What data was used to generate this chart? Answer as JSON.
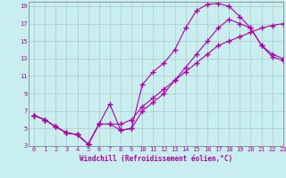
{
  "xlabel": "Windchill (Refroidissement éolien,°C)",
  "background_color": "#c8eef0",
  "line_color": "#aa00aa",
  "line1_x": [
    0,
    1,
    2,
    3,
    4,
    5,
    6,
    7,
    8,
    9,
    10,
    11,
    12,
    13,
    14,
    15,
    16,
    17,
    18,
    19,
    20,
    21,
    22,
    23
  ],
  "line1_y": [
    6.5,
    6.0,
    5.2,
    4.5,
    4.3,
    3.2,
    5.5,
    7.8,
    4.8,
    5.0,
    10.0,
    11.5,
    12.5,
    14.0,
    16.5,
    18.5,
    19.2,
    19.3,
    19.0,
    17.8,
    16.5,
    14.5,
    13.2,
    12.8
  ],
  "line2_x": [
    0,
    1,
    2,
    3,
    4,
    5,
    6,
    7,
    8,
    9,
    10,
    11,
    12,
    13,
    14,
    15,
    16,
    17,
    18,
    19,
    20,
    21,
    22,
    23
  ],
  "line2_y": [
    6.5,
    6.0,
    5.2,
    4.5,
    4.3,
    3.2,
    5.5,
    5.5,
    5.5,
    6.0,
    7.5,
    8.5,
    9.5,
    10.5,
    11.5,
    12.5,
    13.5,
    14.5,
    15.0,
    15.5,
    16.0,
    16.5,
    16.8,
    17.0
  ],
  "line3_x": [
    0,
    1,
    2,
    3,
    4,
    5,
    6,
    7,
    8,
    9,
    10,
    11,
    12,
    13,
    14,
    15,
    16,
    17,
    18,
    19,
    20,
    21,
    22,
    23
  ],
  "line3_y": [
    6.5,
    6.0,
    5.2,
    4.5,
    4.3,
    3.2,
    5.5,
    5.5,
    4.8,
    5.0,
    7.0,
    8.0,
    9.0,
    10.5,
    12.0,
    13.5,
    15.0,
    16.5,
    17.5,
    17.0,
    16.5,
    14.5,
    13.5,
    13.0
  ],
  "xlim": [
    -0.5,
    23
  ],
  "ylim": [
    3,
    19.5
  ],
  "xticks": [
    0,
    1,
    2,
    3,
    4,
    5,
    6,
    7,
    8,
    9,
    10,
    11,
    12,
    13,
    14,
    15,
    16,
    17,
    18,
    19,
    20,
    21,
    22,
    23
  ],
  "yticks": [
    3,
    5,
    7,
    9,
    11,
    13,
    15,
    17,
    19
  ],
  "grid_color": "#b0c8c8",
  "marker": "+",
  "markersize": 4,
  "linewidth": 0.8,
  "tick_color": "#aa00aa",
  "label_fontsize": 5.0,
  "xlabel_fontsize": 5.5
}
